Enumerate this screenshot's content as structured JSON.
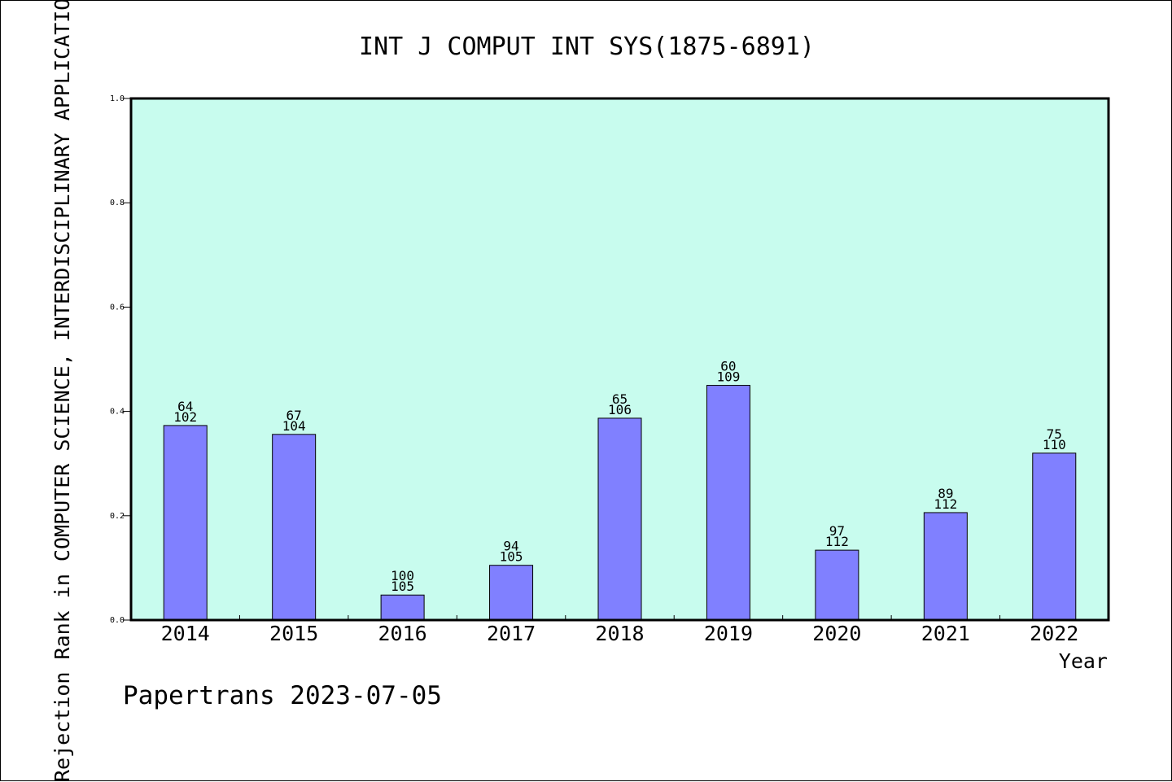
{
  "chart_data": {
    "type": "bar",
    "title": "INT J COMPUT INT SYS(1875-6891)",
    "xlabel": "Year",
    "ylabel": "Rejection Rank in COMPUTER SCIENCE, INTERDISCIPLINARY APPLICATIO",
    "footer": "Papertrans 2023-07-05",
    "categories": [
      "2014",
      "2015",
      "2016",
      "2017",
      "2018",
      "2019",
      "2020",
      "2021",
      "2022"
    ],
    "values": [
      0.373,
      0.356,
      0.048,
      0.105,
      0.387,
      0.45,
      0.134,
      0.206,
      0.32
    ],
    "labels_top": [
      "64",
      "67",
      "100",
      "94",
      "65",
      "60",
      "97",
      "89",
      "75"
    ],
    "labels_bottom": [
      "102",
      "104",
      "105",
      "105",
      "106",
      "109",
      "112",
      "112",
      "110"
    ],
    "ylim": [
      0,
      1.0
    ],
    "yticks": [
      "0.0",
      "0.2",
      "0.4",
      "0.6",
      "0.8",
      "1.0"
    ],
    "grid": false,
    "colors": {
      "plot_bg": "#c8fcee",
      "bar_fill": "#8080ff",
      "bar_stroke": "#000000"
    }
  }
}
